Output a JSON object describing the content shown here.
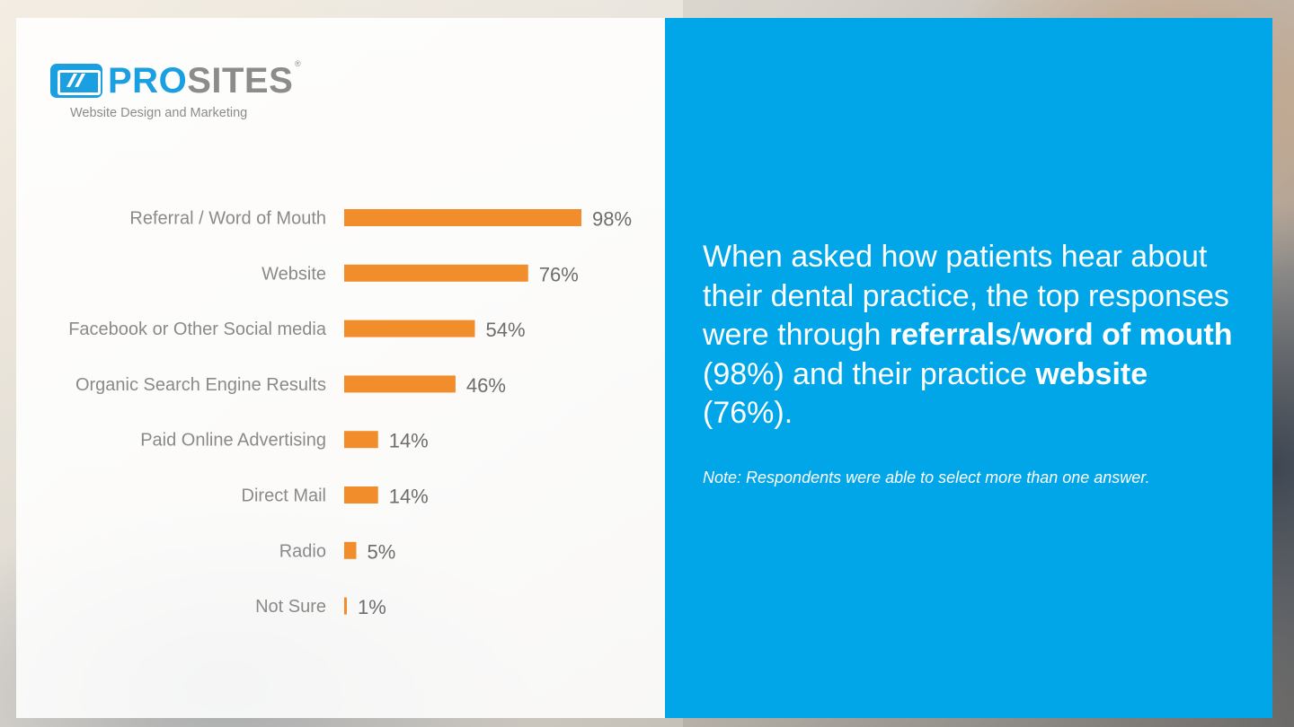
{
  "brand": {
    "name_part1": "PRO",
    "name_part2": "SITES",
    "registered": "®",
    "tagline": "Website Design and Marketing",
    "primary_color": "#1a9fe0",
    "secondary_color": "#8c8c8c"
  },
  "chart_data": {
    "type": "bar",
    "orientation": "horizontal",
    "categories": [
      "Referral / Word of Mouth",
      "Website",
      "Facebook or Other Social media",
      "Organic Search Engine Results",
      "Paid Online Advertising",
      "Direct Mail",
      "Radio",
      "Not Sure"
    ],
    "values": [
      98,
      76,
      54,
      46,
      14,
      14,
      5,
      1
    ],
    "value_labels": [
      "98%",
      "76%",
      "54%",
      "46%",
      "14%",
      "14%",
      "5%",
      "1%"
    ],
    "xlim": [
      0,
      100
    ],
    "bar_color": "#f28d2c",
    "grid": false,
    "legend": "none"
  },
  "panel": {
    "background_color": "#00a6e8",
    "headline_parts": [
      {
        "text": "When asked how patients hear about their dental practice, the top responses were through ",
        "bold": false
      },
      {
        "text": "referrals",
        "bold": true
      },
      {
        "text": "/",
        "bold": false
      },
      {
        "text": "word of mouth",
        "bold": true
      },
      {
        "text": " (98%) and their practice ",
        "bold": false
      },
      {
        "text": "website",
        "bold": true
      },
      {
        "text": " (76%).",
        "bold": false
      }
    ],
    "note": "Note: Respondents were able to select more than one answer."
  }
}
